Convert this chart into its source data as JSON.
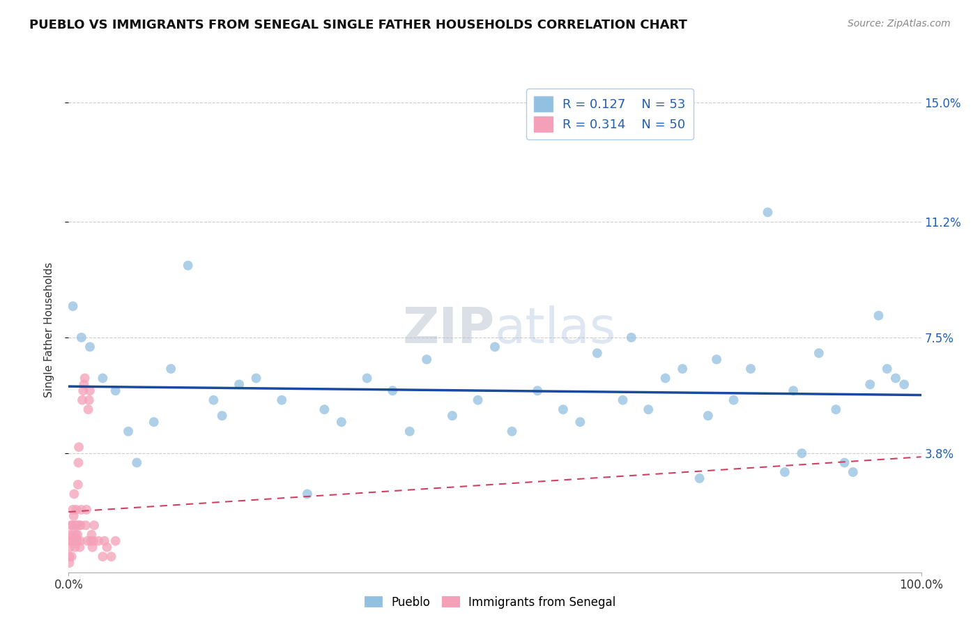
{
  "title": "PUEBLO VS IMMIGRANTS FROM SENEGAL SINGLE FATHER HOUSEHOLDS CORRELATION CHART",
  "source": "Source: ZipAtlas.com",
  "ylabel": "Single Father Households",
  "xlim": [
    0,
    100
  ],
  "ylim": [
    0,
    15.5
  ],
  "ytick_values": [
    3.8,
    7.5,
    11.2,
    15.0
  ],
  "bottom_legend": [
    "Pueblo",
    "Immigrants from Senegal"
  ],
  "pueblo_color": "#92c0e0",
  "senegal_color": "#f4a0b8",
  "pueblo_line_color": "#1a4a9e",
  "senegal_line_color": "#d04060",
  "pueblo_R": 0.127,
  "pueblo_N": 53,
  "senegal_R": 0.314,
  "senegal_N": 50,
  "pueblo_points": [
    [
      0.5,
      8.5
    ],
    [
      1.5,
      7.5
    ],
    [
      2.5,
      7.2
    ],
    [
      4.0,
      6.2
    ],
    [
      5.5,
      5.8
    ],
    [
      7.0,
      4.5
    ],
    [
      8.0,
      3.5
    ],
    [
      10.0,
      4.8
    ],
    [
      12.0,
      6.5
    ],
    [
      14.0,
      9.8
    ],
    [
      17.0,
      5.5
    ],
    [
      18.0,
      5.0
    ],
    [
      20.0,
      6.0
    ],
    [
      22.0,
      6.2
    ],
    [
      25.0,
      5.5
    ],
    [
      28.0,
      2.5
    ],
    [
      30.0,
      5.2
    ],
    [
      32.0,
      4.8
    ],
    [
      35.0,
      6.2
    ],
    [
      38.0,
      5.8
    ],
    [
      40.0,
      4.5
    ],
    [
      42.0,
      6.8
    ],
    [
      45.0,
      5.0
    ],
    [
      48.0,
      5.5
    ],
    [
      50.0,
      7.2
    ],
    [
      52.0,
      4.5
    ],
    [
      55.0,
      5.8
    ],
    [
      58.0,
      5.2
    ],
    [
      60.0,
      4.8
    ],
    [
      62.0,
      7.0
    ],
    [
      65.0,
      5.5
    ],
    [
      66.0,
      7.5
    ],
    [
      68.0,
      5.2
    ],
    [
      70.0,
      6.2
    ],
    [
      72.0,
      6.5
    ],
    [
      74.0,
      3.0
    ],
    [
      75.0,
      5.0
    ],
    [
      76.0,
      6.8
    ],
    [
      78.0,
      5.5
    ],
    [
      80.0,
      6.5
    ],
    [
      82.0,
      11.5
    ],
    [
      84.0,
      3.2
    ],
    [
      85.0,
      5.8
    ],
    [
      86.0,
      3.8
    ],
    [
      88.0,
      7.0
    ],
    [
      90.0,
      5.2
    ],
    [
      91.0,
      3.5
    ],
    [
      92.0,
      3.2
    ],
    [
      94.0,
      6.0
    ],
    [
      95.0,
      8.2
    ],
    [
      96.0,
      6.5
    ],
    [
      97.0,
      6.2
    ],
    [
      98.0,
      6.0
    ]
  ],
  "senegal_points": [
    [
      0.15,
      0.8
    ],
    [
      0.2,
      1.2
    ],
    [
      0.25,
      1.0
    ],
    [
      0.3,
      1.5
    ],
    [
      0.35,
      0.5
    ],
    [
      0.4,
      1.0
    ],
    [
      0.45,
      1.5
    ],
    [
      0.5,
      2.0
    ],
    [
      0.55,
      1.2
    ],
    [
      0.6,
      1.8
    ],
    [
      0.65,
      2.5
    ],
    [
      0.7,
      1.0
    ],
    [
      0.75,
      0.8
    ],
    [
      0.8,
      1.5
    ],
    [
      0.85,
      1.2
    ],
    [
      0.9,
      2.0
    ],
    [
      0.95,
      1.5
    ],
    [
      1.0,
      1.0
    ],
    [
      1.05,
      1.2
    ],
    [
      1.1,
      2.8
    ],
    [
      1.15,
      3.5
    ],
    [
      1.2,
      4.0
    ],
    [
      1.25,
      1.5
    ],
    [
      1.3,
      0.8
    ],
    [
      1.35,
      1.0
    ],
    [
      1.4,
      1.5
    ],
    [
      1.5,
      2.0
    ],
    [
      1.6,
      5.5
    ],
    [
      1.7,
      5.8
    ],
    [
      1.8,
      6.0
    ],
    [
      1.9,
      6.2
    ],
    [
      2.0,
      1.5
    ],
    [
      2.1,
      2.0
    ],
    [
      2.2,
      1.0
    ],
    [
      2.3,
      5.2
    ],
    [
      2.4,
      5.5
    ],
    [
      2.5,
      5.8
    ],
    [
      2.6,
      1.0
    ],
    [
      2.7,
      1.2
    ],
    [
      2.8,
      0.8
    ],
    [
      2.9,
      1.0
    ],
    [
      3.0,
      1.5
    ],
    [
      3.5,
      1.0
    ],
    [
      4.0,
      0.5
    ],
    [
      4.2,
      1.0
    ],
    [
      4.5,
      0.8
    ],
    [
      5.0,
      0.5
    ],
    [
      5.5,
      1.0
    ],
    [
      0.1,
      0.5
    ],
    [
      0.08,
      0.3
    ]
  ]
}
